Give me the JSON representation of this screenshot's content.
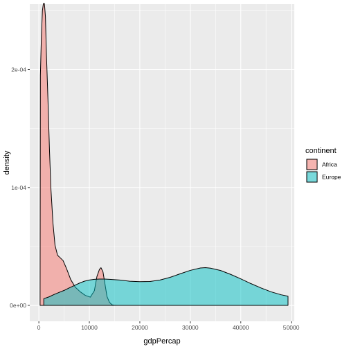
{
  "chart_data": {
    "type": "area",
    "subtype": "density",
    "title": "",
    "xlabel": "gdpPercap",
    "ylabel": "density",
    "xlim": [
      -1800,
      50600
    ],
    "ylim": [
      -1.35e-05,
      0.0002555
    ],
    "x_ticks": [
      0,
      10000,
      20000,
      30000,
      40000,
      50000
    ],
    "x_tick_labels": [
      "0",
      "10000",
      "20000",
      "30000",
      "40000",
      "50000"
    ],
    "y_ticks": [
      0,
      0.0001,
      0.0002
    ],
    "y_tick_labels": [
      "0e+00",
      "1e-04",
      "2e-04"
    ],
    "grid": true,
    "legend": {
      "title": "continent",
      "position": "right"
    },
    "fill_alpha": 0.5,
    "series": [
      {
        "name": "Africa",
        "color": "#F8766D",
        "points": [
          [
            241,
            4.9e-06
          ],
          [
            300,
            0.000195
          ],
          [
            500,
            0.000228
          ],
          [
            700,
            0.00025
          ],
          [
            900,
            0.000256
          ],
          [
            1100,
            0.000256
          ],
          [
            1300,
            0.000245
          ],
          [
            1500,
            0.000213
          ],
          [
            1800,
            0.000175
          ],
          [
            2100,
            0.000132
          ],
          [
            2400,
            9.8e-05
          ],
          [
            2800,
            6.95e-05
          ],
          [
            3200,
            5.1e-05
          ],
          [
            3700,
            4.25e-05
          ],
          [
            4200,
            4.05e-05
          ],
          [
            4800,
            3.8e-05
          ],
          [
            5500,
            3.1e-05
          ],
          [
            6300,
            2.2e-05
          ],
          [
            7200,
            1.55e-05
          ],
          [
            8200,
            1.15e-05
          ],
          [
            9200,
            8.5e-06
          ],
          [
            10200,
            7e-06
          ],
          [
            11000,
            1.25e-05
          ],
          [
            11500,
            2.45e-05
          ],
          [
            12000,
            3.05e-05
          ],
          [
            12300,
            3.2e-05
          ],
          [
            12700,
            2.85e-05
          ],
          [
            13100,
            1.8e-05
          ],
          [
            13500,
            7.5e-06
          ],
          [
            14000,
            2.5e-06
          ],
          [
            14500,
            5e-07
          ],
          [
            15000,
            5e-08
          ],
          [
            15500,
            0.0
          ]
        ]
      },
      {
        "name": "Europe",
        "color": "#00BFC4",
        "points": [
          [
            974,
            5.7e-06
          ],
          [
            2000,
            7.2e-06
          ],
          [
            3000,
            9.2e-06
          ],
          [
            4000,
            1.1e-05
          ],
          [
            5000,
            1.27e-05
          ],
          [
            6000,
            1.48e-05
          ],
          [
            7000,
            1.68e-05
          ],
          [
            8000,
            1.88e-05
          ],
          [
            9000,
            2.05e-05
          ],
          [
            10000,
            2.15e-05
          ],
          [
            11000,
            2.21e-05
          ],
          [
            12000,
            2.23e-05
          ],
          [
            13000,
            2.23e-05
          ],
          [
            14000,
            2.21e-05
          ],
          [
            16000,
            2.15e-05
          ],
          [
            18000,
            2.05e-05
          ],
          [
            20000,
            2.01e-05
          ],
          [
            22000,
            2.03e-05
          ],
          [
            24000,
            2.15e-05
          ],
          [
            26000,
            2.38e-05
          ],
          [
            28000,
            2.68e-05
          ],
          [
            30000,
            2.97e-05
          ],
          [
            32000,
            3.17e-05
          ],
          [
            33000,
            3.2e-05
          ],
          [
            34000,
            3.16e-05
          ],
          [
            36000,
            2.96e-05
          ],
          [
            38000,
            2.63e-05
          ],
          [
            40000,
            2.25e-05
          ],
          [
            42000,
            1.85e-05
          ],
          [
            44000,
            1.48e-05
          ],
          [
            46000,
            1.15e-05
          ],
          [
            48000,
            9e-06
          ],
          [
            49357,
            7.8e-06
          ]
        ]
      }
    ]
  }
}
